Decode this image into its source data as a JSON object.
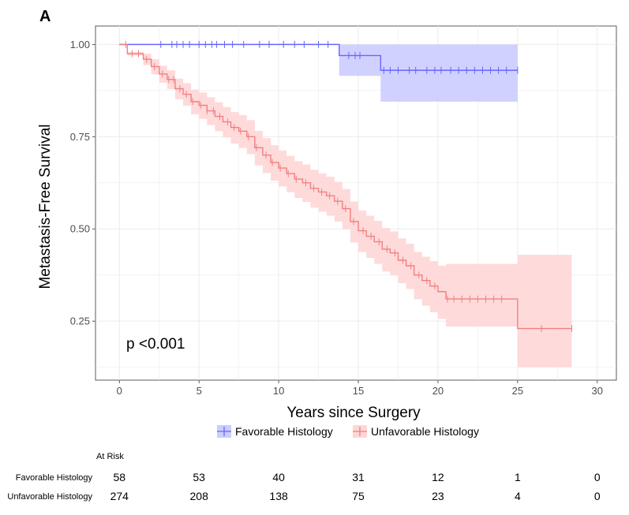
{
  "panel_label": "A",
  "chart_data": {
    "type": "line",
    "subtype": "kaplan-meier",
    "xlabel": "Years since Surgery",
    "ylabel": "Metastasis-Free Survival",
    "xlim": [
      -1.5,
      31.2
    ],
    "ylim": [
      0.09,
      1.05
    ],
    "xticks": [
      0,
      5,
      10,
      15,
      20,
      25,
      30
    ],
    "yticks": [
      0.25,
      0.5,
      0.75,
      1.0
    ],
    "ytick_labels": [
      "0.25",
      "0.50",
      "0.75",
      "1.00"
    ],
    "grid": true,
    "annotation": "p <0.001",
    "legend_position": "bottom",
    "series": [
      {
        "name": "Favorable Histology",
        "color": "#6666ff",
        "fill": "#ccccff",
        "steps": [
          [
            0,
            1.0
          ],
          [
            13.8,
            0.97
          ],
          [
            16.4,
            0.93
          ],
          [
            25.0,
            0.93
          ]
        ],
        "ci": [
          {
            "x0": 13.8,
            "x1": 16.4,
            "lo": 0.915,
            "hi": 1.0
          },
          {
            "x0": 16.4,
            "x1": 25.0,
            "lo": 0.845,
            "hi": 1.0
          }
        ],
        "censor": [
          2.6,
          3.3,
          3.6,
          4.0,
          4.4,
          5.0,
          5.4,
          5.8,
          6.1,
          6.6,
          7.1,
          7.8,
          8.8,
          9.4,
          10.3,
          11.0,
          11.6,
          12.5,
          13.1,
          14.4,
          14.8,
          15.1,
          16.6,
          17.0,
          17.5,
          18.2,
          18.6,
          19.3,
          19.8,
          20.2,
          20.8,
          21.3,
          21.8,
          22.3,
          22.8,
          23.3,
          23.8,
          24.3,
          25.0
        ]
      },
      {
        "name": "Unfavorable Histology",
        "color": "#f08080",
        "fill": "#ffd6d6",
        "points": [
          [
            0,
            1.0
          ],
          [
            0.5,
            0.975
          ],
          [
            1.5,
            0.96
          ],
          [
            2.0,
            0.94
          ],
          [
            2.5,
            0.92
          ],
          [
            3.0,
            0.905
          ],
          [
            3.5,
            0.88
          ],
          [
            4.0,
            0.865
          ],
          [
            4.5,
            0.845
          ],
          [
            5.0,
            0.835
          ],
          [
            5.5,
            0.82
          ],
          [
            6.0,
            0.805
          ],
          [
            6.5,
            0.79
          ],
          [
            7.0,
            0.775
          ],
          [
            7.5,
            0.765
          ],
          [
            8.0,
            0.75
          ],
          [
            8.5,
            0.72
          ],
          [
            9.0,
            0.7
          ],
          [
            9.5,
            0.68
          ],
          [
            10.0,
            0.665
          ],
          [
            10.5,
            0.65
          ],
          [
            11.0,
            0.635
          ],
          [
            11.5,
            0.625
          ],
          [
            12.0,
            0.61
          ],
          [
            12.5,
            0.6
          ],
          [
            13.0,
            0.59
          ],
          [
            13.5,
            0.575
          ],
          [
            14.0,
            0.555
          ],
          [
            14.5,
            0.52
          ],
          [
            15.0,
            0.495
          ],
          [
            15.5,
            0.48
          ],
          [
            16.0,
            0.465
          ],
          [
            16.5,
            0.445
          ],
          [
            17.0,
            0.435
          ],
          [
            17.5,
            0.415
          ],
          [
            18.0,
            0.4
          ],
          [
            18.5,
            0.375
          ],
          [
            19.0,
            0.36
          ],
          [
            19.5,
            0.345
          ],
          [
            20.0,
            0.33
          ],
          [
            20.5,
            0.31
          ],
          [
            25.0,
            0.31
          ],
          [
            25.0,
            0.23
          ],
          [
            28.4,
            0.23
          ]
        ],
        "ci_halfwidth": [
          [
            0,
            0.0
          ],
          [
            2,
            0.02
          ],
          [
            5,
            0.035
          ],
          [
            8,
            0.045
          ],
          [
            12,
            0.05
          ],
          [
            15,
            0.055
          ],
          [
            18,
            0.06
          ],
          [
            20,
            0.07
          ],
          [
            25,
            0.08
          ],
          [
            28.4,
            0.1
          ]
        ],
        "censor": [
          0.4,
          0.8,
          1.2,
          1.7,
          2.2,
          2.7,
          3.1,
          3.4,
          3.8,
          4.2,
          4.6,
          5.1,
          5.5,
          5.9,
          6.3,
          6.8,
          7.2,
          7.6,
          8.1,
          8.6,
          9.2,
          9.6,
          10.1,
          10.6,
          11.1,
          11.7,
          12.2,
          12.7,
          13.2,
          13.7,
          14.2,
          14.7,
          15.3,
          15.8,
          16.3,
          16.8,
          17.3,
          17.8,
          18.3,
          18.8,
          19.3,
          19.8,
          20.6,
          21.0,
          21.5,
          22.0,
          22.5,
          23.0,
          23.5,
          24.0,
          26.5,
          28.4
        ]
      }
    ]
  },
  "risk_table": {
    "title": "At Risk",
    "rows": [
      {
        "label": "Favorable Histology",
        "values": [
          "58",
          "53",
          "40",
          "31",
          "12",
          "1",
          "0"
        ]
      },
      {
        "label": "Unfavorable Histology",
        "values": [
          "274",
          "208",
          "138",
          "75",
          "23",
          "4",
          "0"
        ]
      }
    ]
  }
}
